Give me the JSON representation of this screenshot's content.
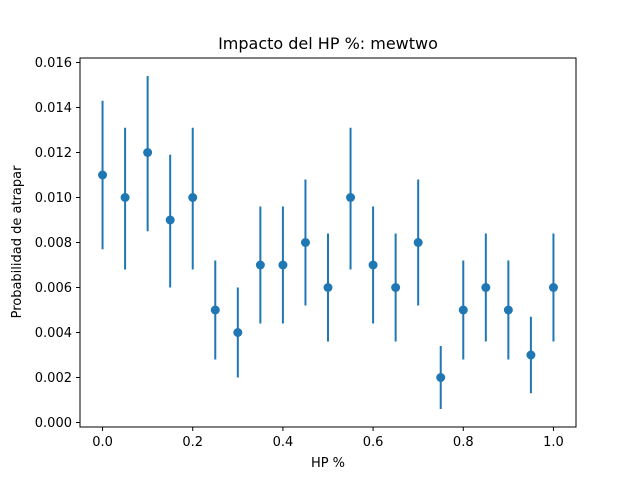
{
  "chart_data": {
    "type": "scatter",
    "title": "Impacto del HP %: mewtwo",
    "xlabel": "HP %",
    "ylabel": "Probabilidad de atrapar",
    "xlim": [
      -0.05,
      1.05
    ],
    "ylim": [
      -0.0002,
      0.0162
    ],
    "x_ticks": [
      0.0,
      0.2,
      0.4,
      0.6,
      0.8,
      1.0
    ],
    "x_tick_labels": [
      "0.0",
      "0.2",
      "0.4",
      "0.6",
      "0.8",
      "1.0"
    ],
    "y_ticks": [
      0.0,
      0.002,
      0.004,
      0.006,
      0.008,
      0.01,
      0.012,
      0.014,
      0.016
    ],
    "y_tick_labels": [
      "0.000",
      "0.002",
      "0.004",
      "0.006",
      "0.008",
      "0.010",
      "0.012",
      "0.014",
      "0.016"
    ],
    "grid": false,
    "color": "#1f77b4",
    "points": [
      {
        "x": 0.0,
        "y": 0.011,
        "err_low": 0.0077,
        "err_high": 0.0143
      },
      {
        "x": 0.05,
        "y": 0.01,
        "err_low": 0.0068,
        "err_high": 0.0131
      },
      {
        "x": 0.1,
        "y": 0.012,
        "err_low": 0.0085,
        "err_high": 0.0154
      },
      {
        "x": 0.15,
        "y": 0.009,
        "err_low": 0.006,
        "err_high": 0.0119
      },
      {
        "x": 0.2,
        "y": 0.01,
        "err_low": 0.0068,
        "err_high": 0.0131
      },
      {
        "x": 0.25,
        "y": 0.005,
        "err_low": 0.0028,
        "err_high": 0.0072
      },
      {
        "x": 0.3,
        "y": 0.004,
        "err_low": 0.002,
        "err_high": 0.006
      },
      {
        "x": 0.35,
        "y": 0.007,
        "err_low": 0.0044,
        "err_high": 0.0096
      },
      {
        "x": 0.4,
        "y": 0.007,
        "err_low": 0.0044,
        "err_high": 0.0096
      },
      {
        "x": 0.45,
        "y": 0.008,
        "err_low": 0.0052,
        "err_high": 0.0108
      },
      {
        "x": 0.5,
        "y": 0.006,
        "err_low": 0.0036,
        "err_high": 0.0084
      },
      {
        "x": 0.55,
        "y": 0.01,
        "err_low": 0.0068,
        "err_high": 0.0131
      },
      {
        "x": 0.6,
        "y": 0.007,
        "err_low": 0.0044,
        "err_high": 0.0096
      },
      {
        "x": 0.65,
        "y": 0.006,
        "err_low": 0.0036,
        "err_high": 0.0084
      },
      {
        "x": 0.7,
        "y": 0.008,
        "err_low": 0.0052,
        "err_high": 0.0108
      },
      {
        "x": 0.75,
        "y": 0.002,
        "err_low": 0.0006,
        "err_high": 0.0034
      },
      {
        "x": 0.8,
        "y": 0.005,
        "err_low": 0.0028,
        "err_high": 0.0072
      },
      {
        "x": 0.85,
        "y": 0.006,
        "err_low": 0.0036,
        "err_high": 0.0084
      },
      {
        "x": 0.9,
        "y": 0.005,
        "err_low": 0.0028,
        "err_high": 0.0072
      },
      {
        "x": 0.95,
        "y": 0.003,
        "err_low": 0.0013,
        "err_high": 0.0047
      },
      {
        "x": 1.0,
        "y": 0.006,
        "err_low": 0.0036,
        "err_high": 0.0084
      }
    ]
  }
}
